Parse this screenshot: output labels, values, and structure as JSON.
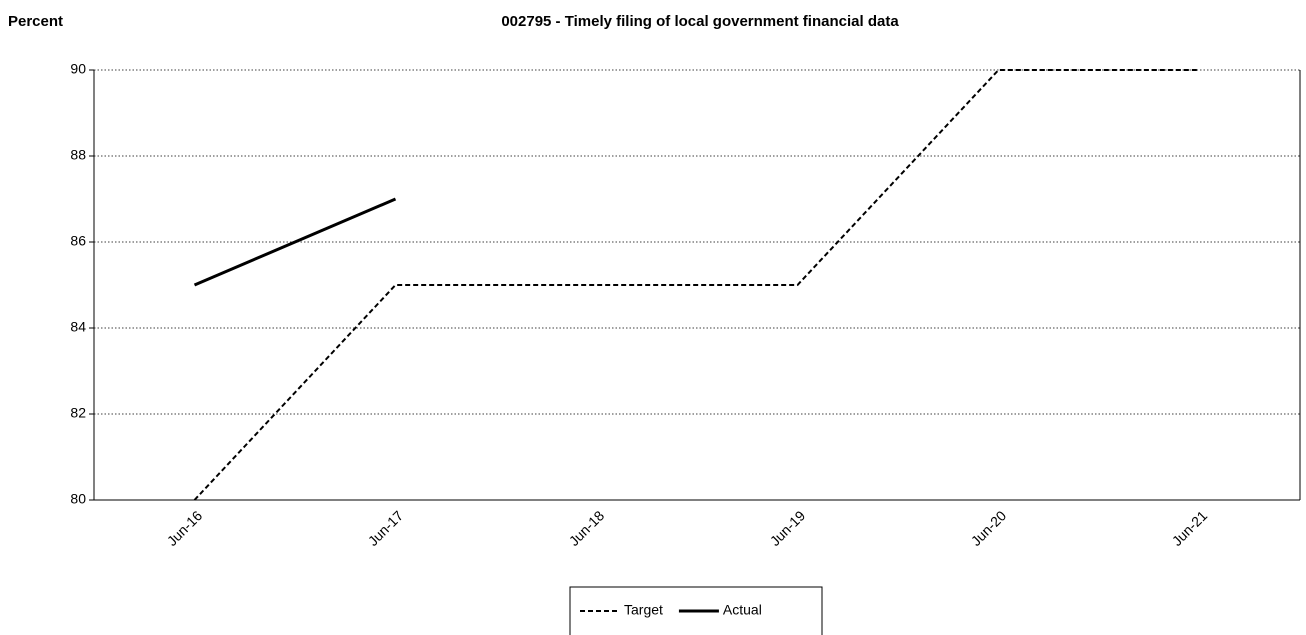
{
  "chart_data": {
    "type": "line",
    "title": "002795 - Timely filing of local government financial data",
    "y_label": "Percent",
    "categories": [
      "Jun-16",
      "Jun-17",
      "Jun-18",
      "Jun-19",
      "Jun-20",
      "Jun-21"
    ],
    "series": [
      {
        "name": "Target",
        "color": "#000000",
        "line_style": "dashed",
        "values": [
          80,
          85,
          85,
          85,
          90,
          90
        ]
      },
      {
        "name": "Actual",
        "color": "#000000",
        "line_style": "solid",
        "values": [
          85,
          87,
          null,
          null,
          null,
          null
        ]
      }
    ],
    "ylim": [
      80,
      90
    ],
    "yticks": [
      80,
      82,
      84,
      86,
      88,
      90
    ],
    "grid": true,
    "legend": "bottom"
  }
}
